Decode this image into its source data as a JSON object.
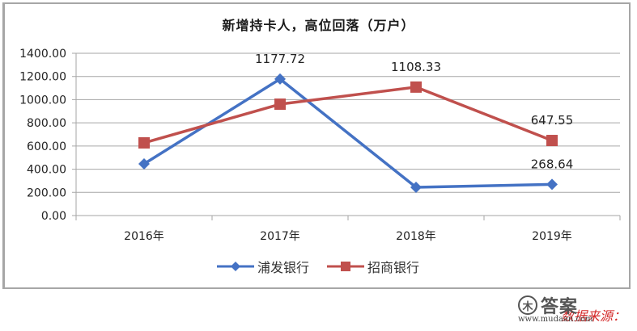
{
  "chart_data": {
    "type": "line",
    "title": "新增持卡人，高位回落（万户）",
    "categories": [
      "2016年",
      "2017年",
      "2018年",
      "2019年"
    ],
    "series": [
      {
        "name": "浦发银行",
        "color": "#4472c4",
        "marker": "diamond",
        "values": [
          446,
          1177.72,
          244,
          268.64
        ]
      },
      {
        "name": "招商银行",
        "color": "#c0504d",
        "marker": "square",
        "values": [
          627,
          961,
          1108.33,
          647.55
        ]
      }
    ],
    "data_labels": [
      {
        "series": "浦发银行",
        "category": "2017年",
        "text": "1177.72"
      },
      {
        "series": "招商银行",
        "category": "2018年",
        "text": "1108.33"
      },
      {
        "series": "招商银行",
        "category": "2019年",
        "text": "647.55"
      },
      {
        "series": "浦发银行",
        "category": "2019年",
        "text": "268.64"
      }
    ],
    "yticks": [
      "0.00",
      "200.00",
      "400.00",
      "600.00",
      "800.00",
      "1000.00",
      "1200.00",
      "1400.00"
    ],
    "ylim": [
      0,
      1400
    ],
    "xlabel": "",
    "ylabel": "",
    "grid": true,
    "legend_position": "bottom"
  },
  "source_text": "数据来源：",
  "watermark": {
    "logo": "答案",
    "url": "www.mudaan.com"
  }
}
